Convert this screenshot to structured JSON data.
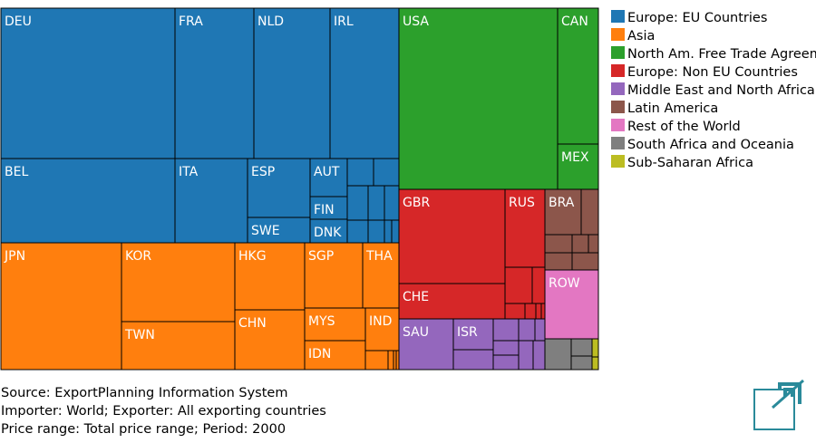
{
  "chart_data": {
    "type": "treemap",
    "title": "",
    "groups": [
      {
        "name": "Europe: EU Countries",
        "color": "#1f77b4",
        "items": [
          {
            "label": "DEU",
            "value": 9.7
          },
          {
            "label": "FRA",
            "value": 4.5
          },
          {
            "label": "NLD",
            "value": 4.4
          },
          {
            "label": "IRL",
            "value": 4.0
          },
          {
            "label": "BEL",
            "value": 5.3
          },
          {
            "label": "ITA",
            "value": 2.5
          },
          {
            "label": "ESP",
            "value": 1.9
          },
          {
            "label": "AUT",
            "value": 0.75
          },
          {
            "label": "FIN",
            "value": 0.6
          },
          {
            "label": "SWE",
            "value": 0.8
          },
          {
            "label": "DNK",
            "value": 0.5
          },
          {
            "label": "",
            "value": 0.4
          },
          {
            "label": "",
            "value": 0.4
          },
          {
            "label": "",
            "value": 0.3
          },
          {
            "label": "",
            "value": 0.3
          },
          {
            "label": "",
            "value": 0.3
          },
          {
            "label": "",
            "value": 0.2
          },
          {
            "label": "",
            "value": 0.2
          },
          {
            "label": "",
            "value": 0.15
          },
          {
            "label": "",
            "value": 0.15
          }
        ]
      },
      {
        "name": "Asia",
        "color": "#ff7f0e",
        "items": [
          {
            "label": "JPN",
            "value": 5.7
          },
          {
            "label": "KOR",
            "value": 3.6
          },
          {
            "label": "TWN",
            "value": 2.3
          },
          {
            "label": "HKG",
            "value": 2.2
          },
          {
            "label": "CHN",
            "value": 2.0
          },
          {
            "label": "SGP",
            "value": 1.6
          },
          {
            "label": "THA",
            "value": 1.1
          },
          {
            "label": "MYS",
            "value": 1.2
          },
          {
            "label": "IDN",
            "value": 0.8
          },
          {
            "label": "IND",
            "value": 0.7
          },
          {
            "label": "",
            "value": 0.15
          },
          {
            "label": "",
            "value": 0.1
          },
          {
            "label": "",
            "value": 0.08
          },
          {
            "label": "",
            "value": 0.06
          }
        ]
      },
      {
        "name": "North Am. Free Trade Agreement",
        "color": "#2ca02c",
        "items": [
          {
            "label": "USA",
            "value": 11.2
          },
          {
            "label": "CAN",
            "value": 1.8
          },
          {
            "label": "MEX",
            "value": 0.6
          }
        ]
      },
      {
        "name": "Europe: Non EU Countries",
        "color": "#d62728",
        "items": [
          {
            "label": "GBR",
            "value": 4.2
          },
          {
            "label": "RUS",
            "value": 1.1
          },
          {
            "label": "CHE",
            "value": 1.4
          },
          {
            "label": "",
            "value": 0.4
          },
          {
            "label": "",
            "value": 0.3
          },
          {
            "label": "",
            "value": 0.15
          },
          {
            "label": "",
            "value": 0.1
          },
          {
            "label": "",
            "value": 0.1
          },
          {
            "label": "",
            "value": 0.1
          }
        ]
      },
      {
        "name": "Middle East and North Africa",
        "color": "#9467bd",
        "items": [
          {
            "label": "SAU",
            "value": 1.1
          },
          {
            "label": "ISR",
            "value": 0.8
          },
          {
            "label": "",
            "value": 0.25
          },
          {
            "label": "",
            "value": 0.15
          },
          {
            "label": "",
            "value": 0.12
          },
          {
            "label": "",
            "value": 0.1
          },
          {
            "label": "",
            "value": 0.06
          },
          {
            "label": "",
            "value": 0.05
          },
          {
            "label": "",
            "value": 0.05
          },
          {
            "label": "",
            "value": 0.04
          }
        ]
      },
      {
        "name": "Latin America",
        "color": "#8c564b",
        "items": [
          {
            "label": "BRA",
            "value": 0.55
          },
          {
            "label": "",
            "value": 0.22
          },
          {
            "label": "",
            "value": 0.18
          },
          {
            "label": "",
            "value": 0.18
          },
          {
            "label": "",
            "value": 0.1
          },
          {
            "label": "",
            "value": 0.08
          },
          {
            "label": "",
            "value": 0.08
          }
        ]
      },
      {
        "name": "Rest of the World",
        "color": "#e377c2",
        "items": [
          {
            "label": "ROW",
            "value": 1.1
          }
        ]
      },
      {
        "name": "South Africa and Oceania",
        "color": "#7f7f7f",
        "items": [
          {
            "label": "",
            "value": 0.4
          },
          {
            "label": "",
            "value": 0.2
          },
          {
            "label": "",
            "value": 0.2
          }
        ]
      },
      {
        "name": "Sub-Saharan Africa",
        "color": "#bcbd22",
        "items": [
          {
            "label": "",
            "value": 0.06
          },
          {
            "label": "",
            "value": 0.04
          }
        ]
      }
    ],
    "legend": [
      {
        "label": "Europe: EU Countries",
        "color": "#1f77b4"
      },
      {
        "label": "Asia",
        "color": "#ff7f0e"
      },
      {
        "label": "North Am. Free Trade Agreement",
        "color": "#2ca02c"
      },
      {
        "label": "Europe: Non EU Countries",
        "color": "#d62728"
      },
      {
        "label": "Middle East and North Africa",
        "color": "#9467bd"
      },
      {
        "label": "Latin America",
        "color": "#8c564b"
      },
      {
        "label": "Rest of the World",
        "color": "#e377c2"
      },
      {
        "label": "South Africa and Oceania",
        "color": "#7f7f7f"
      },
      {
        "label": "Sub-Saharan Africa",
        "color": "#bcbd22"
      }
    ],
    "legend_position": "right"
  },
  "footer": {
    "source": "Source: ExportPlanning Information System",
    "importer": "Importer: World; Exporter: All exporting countries",
    "price": "Price range: Total price range; Period: 2000"
  },
  "logo": {
    "color": "#2a8a9a",
    "icon": "exportplanning-logo-icon"
  }
}
